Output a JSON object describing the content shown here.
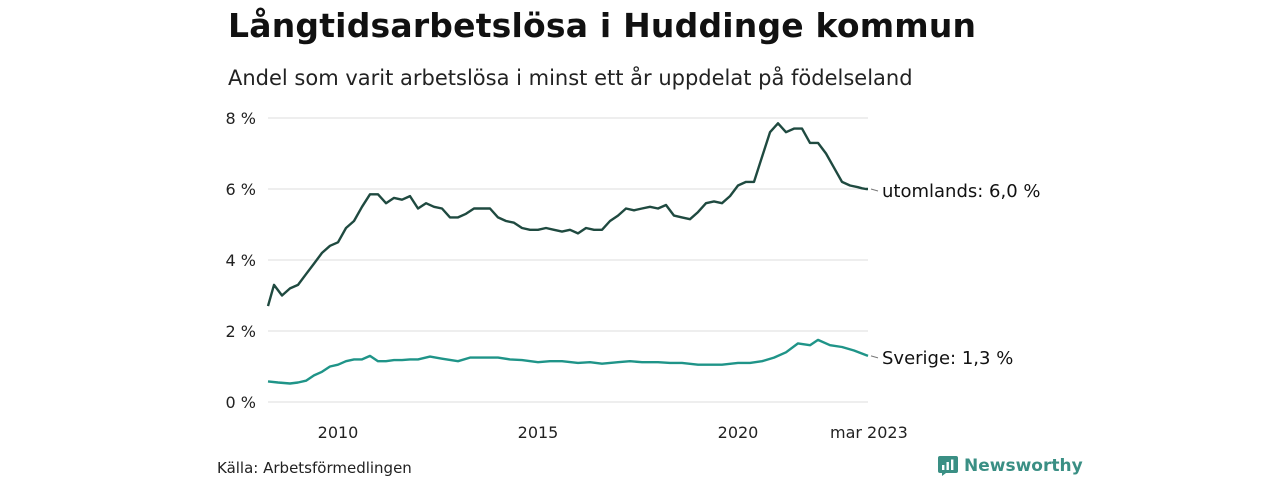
{
  "header": {
    "title": "Långtidsarbetslösa i Huddinge kommun",
    "subtitle": "Andel som varit arbetslösa i minst ett år uppdelat på födelseland"
  },
  "footer": {
    "source": "Källa: Arbetsförmedlingen",
    "brand": "Newsworthy",
    "brand_icon": "bar-chart-icon"
  },
  "colors": {
    "utomlands": "#1f4a40",
    "sverige": "#1f9488",
    "grid": "#dddddd",
    "brand": "#3a8f84"
  },
  "chart_data": {
    "type": "line",
    "title": "Långtidsarbetslösa i Huddinge kommun",
    "subtitle": "Andel som varit arbetslösa i minst ett år uppdelat på födelseland",
    "x_ticks": [
      "2010",
      "2015",
      "2020",
      "mar 2023"
    ],
    "y_ticks": [
      "0 %",
      "2 %",
      "4 %",
      "6 %",
      "8 %"
    ],
    "ylim": [
      0,
      8
    ],
    "xlim": [
      2008.25,
      2023.25
    ],
    "grid": true,
    "series": [
      {
        "name": "utomlands",
        "end_label": "utomlands: 6,0 %",
        "x": [
          2008.25,
          2008.4,
          2008.6,
          2008.8,
          2009.0,
          2009.2,
          2009.4,
          2009.6,
          2009.8,
          2010.0,
          2010.2,
          2010.4,
          2010.6,
          2010.8,
          2011.0,
          2011.2,
          2011.4,
          2011.6,
          2011.8,
          2012.0,
          2012.2,
          2012.4,
          2012.6,
          2012.8,
          2013.0,
          2013.2,
          2013.4,
          2013.6,
          2013.8,
          2014.0,
          2014.2,
          2014.4,
          2014.6,
          2014.8,
          2015.0,
          2015.2,
          2015.4,
          2015.6,
          2015.8,
          2016.0,
          2016.2,
          2016.4,
          2016.6,
          2016.8,
          2017.0,
          2017.2,
          2017.4,
          2017.6,
          2017.8,
          2018.0,
          2018.2,
          2018.4,
          2018.6,
          2018.8,
          2019.0,
          2019.2,
          2019.4,
          2019.6,
          2019.8,
          2020.0,
          2020.2,
          2020.4,
          2020.6,
          2020.8,
          2021.0,
          2021.2,
          2021.4,
          2021.6,
          2021.8,
          2022.0,
          2022.2,
          2022.4,
          2022.6,
          2022.8,
          2023.0,
          2023.1,
          2023.2,
          2023.25
        ],
        "y": [
          2.7,
          3.3,
          3.0,
          3.2,
          3.3,
          3.6,
          3.9,
          4.2,
          4.4,
          4.5,
          4.9,
          5.1,
          5.5,
          5.85,
          5.85,
          5.6,
          5.75,
          5.7,
          5.8,
          5.45,
          5.6,
          5.5,
          5.45,
          5.2,
          5.2,
          5.3,
          5.45,
          5.45,
          5.45,
          5.2,
          5.1,
          5.05,
          4.9,
          4.85,
          4.85,
          4.9,
          4.85,
          4.8,
          4.85,
          4.75,
          4.9,
          4.85,
          4.85,
          5.1,
          5.25,
          5.45,
          5.4,
          5.45,
          5.5,
          5.45,
          5.55,
          5.25,
          5.2,
          5.15,
          5.35,
          5.6,
          5.65,
          5.6,
          5.8,
          6.1,
          6.2,
          6.2,
          6.9,
          7.6,
          7.85,
          7.6,
          7.7,
          7.7,
          7.3,
          7.3,
          7.0,
          6.6,
          6.2,
          6.1,
          6.05,
          6.02,
          6.0,
          6.0
        ]
      },
      {
        "name": "Sverige",
        "end_label": "Sverige: 1,3 %",
        "x": [
          2008.25,
          2008.5,
          2008.8,
          2009.0,
          2009.2,
          2009.4,
          2009.6,
          2009.8,
          2010.0,
          2010.2,
          2010.4,
          2010.6,
          2010.8,
          2011.0,
          2011.2,
          2011.4,
          2011.6,
          2011.8,
          2012.0,
          2012.3,
          2012.6,
          2013.0,
          2013.3,
          2013.6,
          2014.0,
          2014.3,
          2014.6,
          2015.0,
          2015.3,
          2015.6,
          2016.0,
          2016.3,
          2016.6,
          2017.0,
          2017.3,
          2017.6,
          2018.0,
          2018.3,
          2018.6,
          2019.0,
          2019.3,
          2019.6,
          2020.0,
          2020.3,
          2020.6,
          2020.9,
          2021.2,
          2021.5,
          2021.8,
          2022.0,
          2022.3,
          2022.6,
          2022.9,
          2023.25
        ],
        "y": [
          0.58,
          0.55,
          0.52,
          0.55,
          0.6,
          0.75,
          0.85,
          1.0,
          1.05,
          1.15,
          1.2,
          1.2,
          1.3,
          1.15,
          1.15,
          1.18,
          1.18,
          1.2,
          1.2,
          1.28,
          1.22,
          1.15,
          1.25,
          1.25,
          1.25,
          1.2,
          1.18,
          1.12,
          1.15,
          1.15,
          1.1,
          1.12,
          1.08,
          1.12,
          1.15,
          1.12,
          1.12,
          1.1,
          1.1,
          1.05,
          1.05,
          1.05,
          1.1,
          1.1,
          1.15,
          1.25,
          1.4,
          1.65,
          1.6,
          1.75,
          1.6,
          1.55,
          1.45,
          1.3
        ]
      }
    ]
  }
}
